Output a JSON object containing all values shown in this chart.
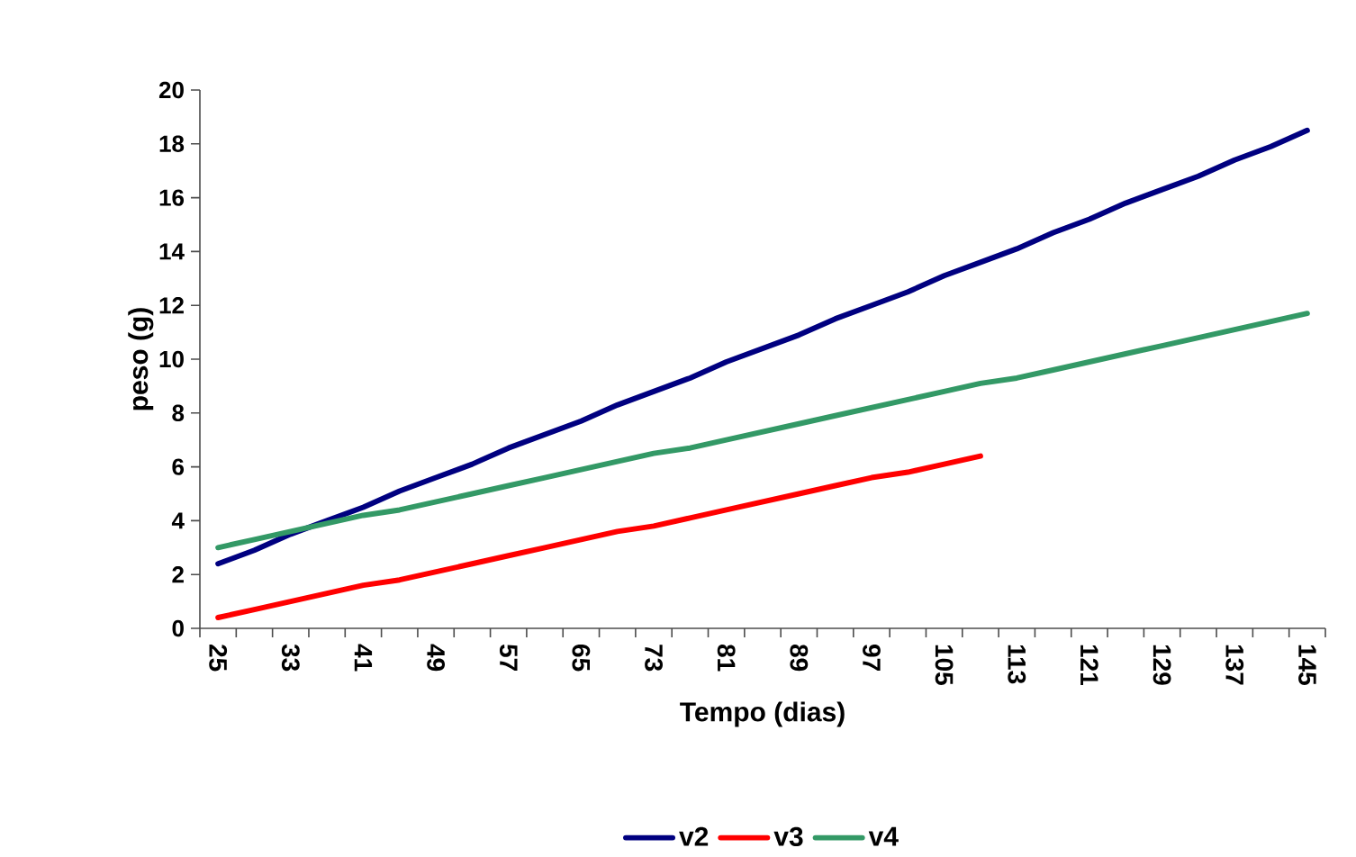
{
  "chart_data": {
    "type": "line",
    "xlabel": "Tempo (dias)",
    "ylabel": "peso (g)",
    "categories": [
      "25",
      null,
      "33",
      null,
      "41",
      null,
      "49",
      null,
      "57",
      null,
      "65",
      null,
      "73",
      null,
      "81",
      null,
      "89",
      null,
      "97",
      null,
      "105",
      null,
      "113",
      null,
      "121",
      null,
      "129",
      null,
      "137",
      null,
      "145"
    ],
    "series": [
      {
        "name": "v2",
        "color": "#000080",
        "values": [
          2.4,
          2.9,
          3.5,
          4.0,
          4.5,
          5.1,
          5.6,
          6.1,
          6.7,
          7.2,
          7.7,
          8.3,
          8.8,
          9.3,
          9.9,
          10.4,
          10.9,
          11.5,
          12.0,
          12.5,
          13.1,
          13.6,
          14.1,
          14.7,
          15.2,
          15.8,
          16.3,
          16.8,
          17.4,
          17.9,
          18.5
        ]
      },
      {
        "name": "v3",
        "color": "#ff0000",
        "values": [
          0.4,
          0.7,
          1.0,
          1.3,
          1.6,
          1.8,
          2.1,
          2.4,
          2.7,
          3.0,
          3.3,
          3.6,
          3.8,
          4.1,
          4.4,
          4.7,
          5.0,
          5.3,
          5.6,
          5.8,
          6.1,
          6.4,
          null,
          null,
          null,
          null,
          null,
          null,
          null,
          null,
          null
        ]
      },
      {
        "name": "v4",
        "color": "#339966",
        "values": [
          3.0,
          3.3,
          3.6,
          3.9,
          4.2,
          4.4,
          4.7,
          5.0,
          5.3,
          5.6,
          5.9,
          6.2,
          6.5,
          6.7,
          7.0,
          7.3,
          7.6,
          7.9,
          8.2,
          8.5,
          8.8,
          9.1,
          9.3,
          9.6,
          9.9,
          10.2,
          10.5,
          10.8,
          11.1,
          11.4,
          11.7
        ]
      }
    ],
    "ylim": [
      0,
      20
    ],
    "yticks": [
      0,
      2,
      4,
      6,
      8,
      10,
      12,
      14,
      16,
      18,
      20
    ],
    "legend": "bottom"
  }
}
